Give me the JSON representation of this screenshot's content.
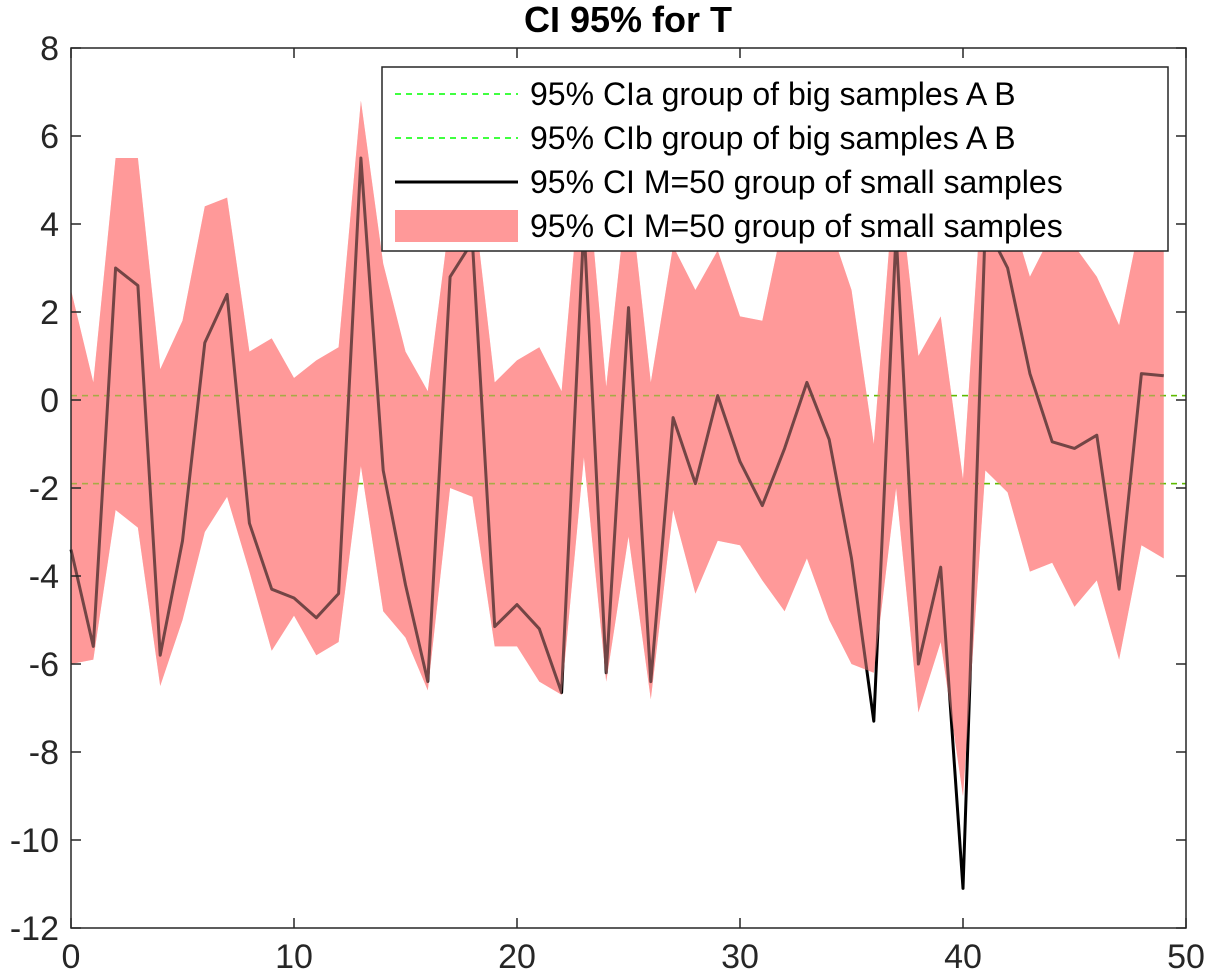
{
  "chart_data": {
    "type": "line",
    "title": "CI 95% for T",
    "xlabel": "",
    "ylabel": "",
    "xlim": [
      0,
      50
    ],
    "ylim": [
      -12,
      8
    ],
    "xticks": [
      0,
      10,
      20,
      30,
      40,
      50
    ],
    "yticks": [
      -12,
      -10,
      -8,
      -6,
      -4,
      -2,
      0,
      2,
      4,
      6,
      8
    ],
    "grid": false,
    "legend_position": "top-right",
    "x": [
      0,
      1,
      2,
      3,
      4,
      5,
      6,
      7,
      8,
      9,
      10,
      11,
      12,
      13,
      14,
      15,
      16,
      17,
      18,
      19,
      20,
      21,
      22,
      23,
      24,
      25,
      26,
      27,
      28,
      29,
      30,
      31,
      32,
      33,
      34,
      35,
      36,
      37,
      38,
      39,
      40,
      41,
      42,
      43,
      44,
      45,
      46,
      47,
      48,
      49
    ],
    "series": [
      {
        "name": "95% CIa group of big samples A B",
        "kind": "hline",
        "style": "dashed",
        "color": "#00ff00",
        "value": 0.1
      },
      {
        "name": "95% CIb group of big samples A B",
        "kind": "hline",
        "style": "dashed",
        "color": "#00ff00",
        "value": -1.9
      },
      {
        "name": "95% CI M=50 group of small samples",
        "kind": "line",
        "color": "#000000",
        "values": [
          -3.4,
          -5.6,
          3.0,
          2.6,
          -5.8,
          -3.2,
          1.3,
          2.4,
          -2.8,
          -4.3,
          -4.5,
          -4.95,
          -4.4,
          5.5,
          -1.6,
          -4.2,
          -6.4,
          2.8,
          3.6,
          -5.15,
          -4.65,
          -5.2,
          -6.65,
          4.0,
          -6.2,
          2.1,
          -6.4,
          -0.4,
          -1.9,
          0.1,
          -1.4,
          -2.4,
          -1.1,
          0.4,
          -0.9,
          -3.6,
          -7.3,
          3.8,
          -6.0,
          -3.8,
          -11.1,
          4.0,
          3.0,
          0.6,
          -0.95,
          -1.1,
          -0.8,
          -4.3,
          0.6,
          0.55
        ]
      },
      {
        "name": "95% CI M=50 group of small samples",
        "kind": "band",
        "color": "#ff9999",
        "upper": [
          2.5,
          0.4,
          5.5,
          5.5,
          0.7,
          1.8,
          4.4,
          4.6,
          1.1,
          1.4,
          0.5,
          0.9,
          1.2,
          6.8,
          3.1,
          1.1,
          0.2,
          4.2,
          4.8,
          0.4,
          0.9,
          1.2,
          0.2,
          6.0,
          0.3,
          5.0,
          0.4,
          3.5,
          2.5,
          3.4,
          1.9,
          1.8,
          4.2,
          5.5,
          4.0,
          2.5,
          -1.0,
          5.5,
          1.0,
          1.9,
          -1.8,
          6.0,
          4.5,
          2.8,
          3.8,
          3.5,
          2.8,
          1.7,
          4.2,
          4.5
        ],
        "lower": [
          -6.0,
          -5.9,
          -2.5,
          -2.9,
          -6.5,
          -5.0,
          -3.0,
          -2.2,
          -3.9,
          -5.7,
          -4.9,
          -5.8,
          -5.5,
          -1.5,
          -4.8,
          -5.4,
          -6.6,
          -2.0,
          -2.2,
          -5.6,
          -5.6,
          -6.4,
          -6.7,
          -1.3,
          -6.4,
          -3.1,
          -6.8,
          -2.5,
          -4.4,
          -3.2,
          -3.3,
          -4.1,
          -4.8,
          -3.6,
          -5.0,
          -6.0,
          -6.2,
          -2.0,
          -7.1,
          -5.5,
          -9.0,
          -1.6,
          -2.1,
          -3.9,
          -3.7,
          -4.7,
          -4.1,
          -5.9,
          -3.3,
          -3.6
        ]
      }
    ]
  },
  "legend": {
    "entries": [
      {
        "label": "95% CIa group of big samples A B",
        "swatch": "dashed",
        "color": "#00ff00"
      },
      {
        "label": "95% CIb group of big samples A B",
        "swatch": "dashed",
        "color": "#00ff00"
      },
      {
        "label": "95% CI M=50 group of small samples",
        "swatch": "line",
        "color": "#000000"
      },
      {
        "label": "95% CI M=50 group of small samples",
        "swatch": "patch",
        "color": "#ff9999"
      }
    ]
  }
}
